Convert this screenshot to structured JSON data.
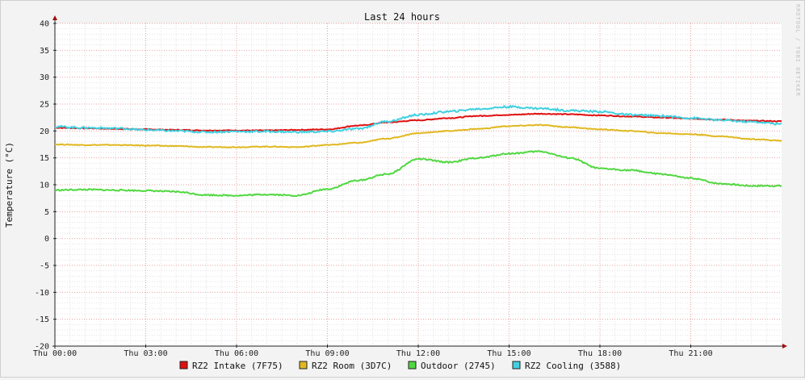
{
  "chart_data": {
    "type": "line",
    "title": "Last 24 hours",
    "ylabel": "Temperature (°C)",
    "xlabel": "",
    "watermark": "RRDTOOL / TOBI OETIKER",
    "ylim": [
      -20,
      40
    ],
    "yticks": [
      -20,
      -15,
      -10,
      -5,
      0,
      5,
      10,
      15,
      20,
      25,
      30,
      35,
      40
    ],
    "xlim_hours": [
      0,
      24
    ],
    "xticks": [
      {
        "hour": 0,
        "label": "Thu 00:00"
      },
      {
        "hour": 3,
        "label": "Thu 03:00"
      },
      {
        "hour": 6,
        "label": "Thu 06:00"
      },
      {
        "hour": 9,
        "label": "Thu 09:00"
      },
      {
        "hour": 12,
        "label": "Thu 12:00"
      },
      {
        "hour": 15,
        "label": "Thu 15:00"
      },
      {
        "hour": 18,
        "label": "Thu 18:00"
      },
      {
        "hour": 21,
        "label": "Thu 21:00"
      }
    ],
    "grid": true,
    "legend_position": "bottom",
    "series": [
      {
        "name": "RZ2 Intake (7F75)",
        "color": "#e11010",
        "points": [
          [
            0,
            20.6
          ],
          [
            1,
            20.5
          ],
          [
            2,
            20.4
          ],
          [
            3,
            20.3
          ],
          [
            4,
            20.2
          ],
          [
            5,
            20.1
          ],
          [
            6,
            20.1
          ],
          [
            7,
            20.1
          ],
          [
            8,
            20.2
          ],
          [
            9,
            20.3
          ],
          [
            10,
            21.0
          ],
          [
            11,
            21.6
          ],
          [
            12,
            22.0
          ],
          [
            13,
            22.4
          ],
          [
            14,
            22.8
          ],
          [
            15,
            23.0
          ],
          [
            16,
            23.2
          ],
          [
            17,
            23.1
          ],
          [
            18,
            22.9
          ],
          [
            19,
            22.7
          ],
          [
            20,
            22.5
          ],
          [
            21,
            22.3
          ],
          [
            22,
            22.1
          ],
          [
            23,
            21.9
          ],
          [
            24,
            21.8
          ]
        ]
      },
      {
        "name": "RZ2 Room (3D7C)",
        "color": "#e0b820",
        "points": [
          [
            0,
            17.5
          ],
          [
            1,
            17.4
          ],
          [
            2,
            17.4
          ],
          [
            3,
            17.3
          ],
          [
            4,
            17.2
          ],
          [
            5,
            17.0
          ],
          [
            6,
            17.0
          ],
          [
            7,
            17.1
          ],
          [
            8,
            17.0
          ],
          [
            9,
            17.4
          ],
          [
            10,
            17.8
          ],
          [
            11,
            18.6
          ],
          [
            12,
            19.6
          ],
          [
            13,
            20.0
          ],
          [
            14,
            20.4
          ],
          [
            15,
            20.9
          ],
          [
            16,
            21.1
          ],
          [
            17,
            20.7
          ],
          [
            18,
            20.3
          ],
          [
            19,
            20.0
          ],
          [
            20,
            19.6
          ],
          [
            21,
            19.4
          ],
          [
            22,
            19.0
          ],
          [
            23,
            18.5
          ],
          [
            24,
            18.2
          ]
        ]
      },
      {
        "name": "Outdoor (2745)",
        "color": "#50d840",
        "points": [
          [
            0,
            9.0
          ],
          [
            1,
            9.1
          ],
          [
            2,
            9.0
          ],
          [
            3,
            8.9
          ],
          [
            4,
            8.7
          ],
          [
            5,
            8.1
          ],
          [
            6,
            8.0
          ],
          [
            7,
            8.2
          ],
          [
            8,
            8.0
          ],
          [
            9,
            9.2
          ],
          [
            10,
            10.8
          ],
          [
            11,
            12.0
          ],
          [
            12,
            14.8
          ],
          [
            13,
            14.2
          ],
          [
            14,
            15.0
          ],
          [
            15,
            15.8
          ],
          [
            16,
            16.2
          ],
          [
            17,
            15.0
          ],
          [
            18,
            13.0
          ],
          [
            19,
            12.7
          ],
          [
            20,
            12.0
          ],
          [
            21,
            11.2
          ],
          [
            22,
            10.2
          ],
          [
            23,
            9.8
          ],
          [
            24,
            9.8
          ]
        ]
      },
      {
        "name": "RZ2 Cooling (3588)",
        "color": "#40d0e0",
        "points": [
          [
            0,
            20.8
          ],
          [
            1,
            20.6
          ],
          [
            2,
            20.5
          ],
          [
            3,
            20.2
          ],
          [
            4,
            20.0
          ],
          [
            5,
            19.8
          ],
          [
            6,
            19.9
          ],
          [
            7,
            19.9
          ],
          [
            8,
            19.8
          ],
          [
            9,
            19.9
          ],
          [
            10,
            20.4
          ],
          [
            11,
            21.8
          ],
          [
            12,
            23.0
          ],
          [
            13,
            23.6
          ],
          [
            14,
            24.1
          ],
          [
            15,
            24.5
          ],
          [
            16,
            24.2
          ],
          [
            17,
            23.8
          ],
          [
            18,
            23.6
          ],
          [
            19,
            23.0
          ],
          [
            20,
            22.8
          ],
          [
            21,
            22.4
          ],
          [
            22,
            22.0
          ],
          [
            23,
            21.7
          ],
          [
            24,
            21.3
          ]
        ]
      }
    ]
  }
}
